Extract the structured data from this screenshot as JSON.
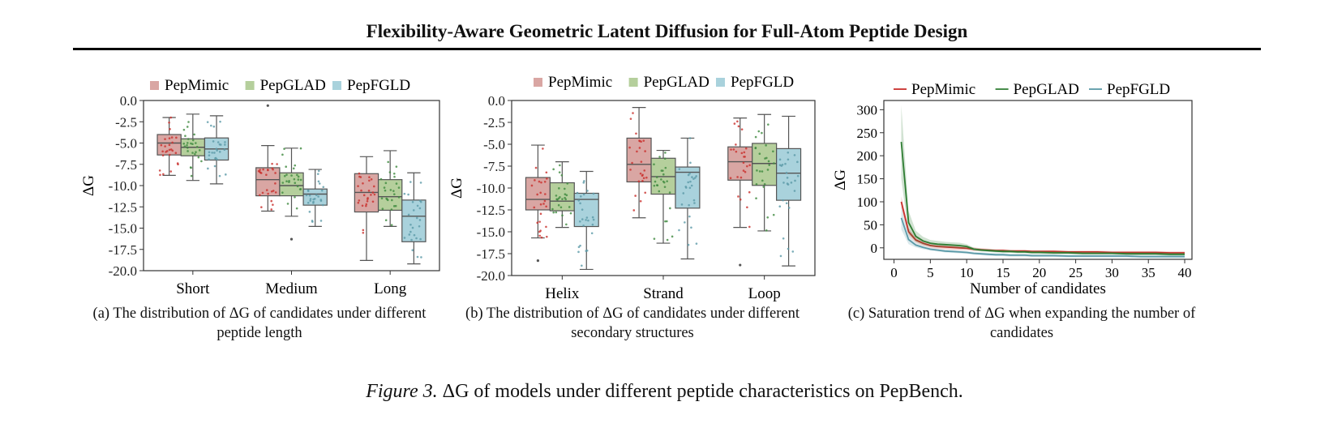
{
  "header": {
    "title": "Flexibility-Aware Geometric Latent Diffusion for Full-Atom Peptide Design"
  },
  "figure": {
    "label": "Figure 3.",
    "caption": "ΔG of models under different peptide characteristics on PepBench."
  },
  "colors": {
    "PepMimic": "#d9a6a3",
    "PepGLAD": "#b5cf9c",
    "PepFGLD": "#a9d2dc",
    "PepMimic_line": "#c9302c",
    "PepGLAD_line": "#2e7d32",
    "PepFGLD_line": "#5b9aa8"
  },
  "chart_data": [
    {
      "type": "box",
      "ylabel": "ΔG",
      "ylim": [
        -20.0,
        0.0
      ],
      "yticks": [
        "0.0",
        "-2.5",
        "-5.0",
        "-7.5",
        "-10.0",
        "-12.5",
        "-15.0",
        "-17.5",
        "-20.0"
      ],
      "categories": [
        "Short",
        "Medium",
        "Long"
      ],
      "legend": "top",
      "caption": "(a) The distribution of ΔG of candidates under different peptide length",
      "series": [
        {
          "name": "PepMimic",
          "boxes": [
            {
              "min": -8.8,
              "q1": -6.4,
              "median": -5.0,
              "q3": -4.0,
              "max": -2.0
            },
            {
              "min": -13.0,
              "q1": -11.2,
              "median": -9.3,
              "q3": -7.9,
              "max": -5.3,
              "outliers": [
                -0.6
              ]
            },
            {
              "min": -18.8,
              "q1": -13.1,
              "median": -10.8,
              "q3": -8.6,
              "max": -6.6
            }
          ]
        },
        {
          "name": "PepGLAD",
          "boxes": [
            {
              "min": -9.4,
              "q1": -6.5,
              "median": -5.5,
              "q3": -4.5,
              "max": -1.6
            },
            {
              "min": -13.6,
              "q1": -11.2,
              "median": -10.0,
              "q3": -8.5,
              "max": -5.6,
              "outliers": [
                -16.3
              ]
            },
            {
              "min": -14.8,
              "q1": -12.9,
              "median": -11.3,
              "q3": -9.3,
              "max": -5.9
            }
          ]
        },
        {
          "name": "PepFGLD",
          "boxes": [
            {
              "min": -9.8,
              "q1": -7.0,
              "median": -5.7,
              "q3": -4.4,
              "max": -1.8
            },
            {
              "min": -14.8,
              "q1": -12.3,
              "median": -11.0,
              "q3": -10.4,
              "max": -8.1
            },
            {
              "min": -19.2,
              "q1": -16.6,
              "median": -13.6,
              "q3": -11.7,
              "max": -8.5
            }
          ]
        }
      ]
    },
    {
      "type": "box",
      "ylabel": "ΔG",
      "ylim": [
        -20.0,
        0.0
      ],
      "yticks": [
        "0.0",
        "-2.5",
        "-5.0",
        "-7.5",
        "-10.0",
        "-12.5",
        "-15.0",
        "-17.5",
        "-20.0"
      ],
      "categories": [
        "Helix",
        "Strand",
        "Loop"
      ],
      "legend": "top",
      "caption": "(b) The distribution of ΔG of candidates under different secondary structures",
      "series": [
        {
          "name": "PepMimic",
          "boxes": [
            {
              "min": -15.7,
              "q1": -12.5,
              "median": -11.3,
              "q3": -8.8,
              "max": -5.1,
              "outliers": [
                -18.3
              ]
            },
            {
              "min": -13.4,
              "q1": -9.3,
              "median": -7.3,
              "q3": -4.3,
              "max": -0.8
            },
            {
              "min": -14.5,
              "q1": -9.1,
              "median": -7.0,
              "q3": -5.3,
              "max": -2.0,
              "outliers": [
                -18.8
              ]
            }
          ]
        },
        {
          "name": "PepGLAD",
          "boxes": [
            {
              "min": -14.5,
              "q1": -12.6,
              "median": -11.5,
              "q3": -9.4,
              "max": -7.0
            },
            {
              "min": -16.3,
              "q1": -10.7,
              "median": -8.7,
              "q3": -6.6,
              "max": -5.7
            },
            {
              "min": -14.9,
              "q1": -9.7,
              "median": -7.2,
              "q3": -4.9,
              "max": -1.6
            }
          ]
        },
        {
          "name": "PepFGLD",
          "boxes": [
            {
              "min": -19.3,
              "q1": -14.4,
              "median": -11.3,
              "q3": -10.6,
              "max": -8.1
            },
            {
              "min": -18.1,
              "q1": -12.3,
              "median": -8.2,
              "q3": -7.6,
              "max": -4.3
            },
            {
              "min": -18.9,
              "q1": -11.4,
              "median": -8.3,
              "q3": -5.5,
              "max": -1.8
            }
          ]
        }
      ]
    },
    {
      "type": "line",
      "xlabel": "Number of candidates",
      "ylabel": "ΔG",
      "xlim": [
        0,
        40
      ],
      "ylim": [
        -25,
        320
      ],
      "xticks": [
        0,
        5,
        10,
        15,
        20,
        25,
        30,
        35,
        40
      ],
      "yticks": [
        0,
        50,
        100,
        150,
        200,
        250,
        300
      ],
      "legend": "top",
      "caption": "(c) Saturation trend of ΔG when expanding the number of candidates",
      "x": [
        1,
        2,
        3,
        4,
        5,
        6,
        7,
        8,
        9,
        10,
        11,
        12,
        13,
        14,
        15,
        16,
        17,
        18,
        19,
        20,
        22,
        24,
        26,
        28,
        30,
        32,
        34,
        36,
        38,
        40
      ],
      "series": [
        {
          "name": "PepMimic",
          "values": [
            100,
            35,
            17,
            10,
            5,
            3,
            2,
            1,
            0,
            -1,
            -3,
            -4,
            -5,
            -6,
            -6,
            -7,
            -7,
            -7,
            -8,
            -8,
            -8,
            -9,
            -9,
            -9,
            -10,
            -10,
            -10,
            -10,
            -11,
            -11
          ],
          "band": [
            12,
            8,
            6,
            5,
            5,
            5,
            5,
            5,
            5,
            4,
            4,
            3,
            3,
            3,
            3,
            3,
            3,
            3,
            3,
            3,
            3,
            3,
            3,
            3,
            3,
            3,
            3,
            3,
            3,
            3
          ]
        },
        {
          "name": "PepGLAD",
          "values": [
            230,
            55,
            25,
            15,
            10,
            8,
            7,
            6,
            5,
            3,
            -3,
            -5,
            -6,
            -7,
            -8,
            -8,
            -9,
            -9,
            -10,
            -10,
            -11,
            -11,
            -12,
            -12,
            -12,
            -13,
            -13,
            -13,
            -14,
            -14
          ],
          "band": [
            80,
            25,
            12,
            9,
            7,
            7,
            6,
            6,
            6,
            5,
            3,
            3,
            3,
            3,
            3,
            3,
            3,
            3,
            3,
            3,
            3,
            3,
            3,
            3,
            3,
            3,
            3,
            3,
            3,
            3
          ]
        },
        {
          "name": "PepFGLD",
          "values": [
            65,
            18,
            6,
            1,
            -3,
            -5,
            -7,
            -8,
            -9,
            -10,
            -12,
            -13,
            -14,
            -15,
            -15,
            -16,
            -16,
            -16,
            -17,
            -17,
            -17,
            -18,
            -18,
            -18,
            -18,
            -18,
            -19,
            -19,
            -19,
            -19
          ],
          "band": [
            25,
            10,
            5,
            4,
            3,
            3,
            3,
            3,
            3,
            3,
            3,
            3,
            3,
            3,
            3,
            3,
            3,
            3,
            3,
            3,
            3,
            3,
            3,
            3,
            3,
            3,
            3,
            3,
            3,
            3
          ]
        }
      ]
    }
  ]
}
